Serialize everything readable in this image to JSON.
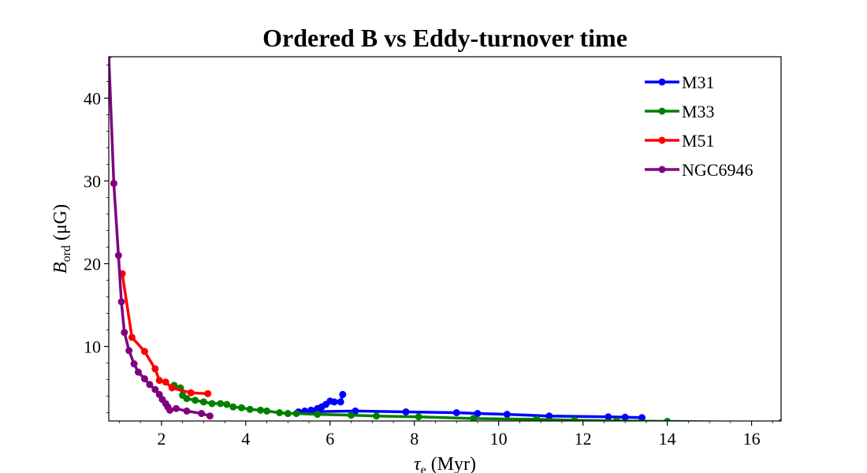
{
  "chart_data": {
    "type": "line",
    "title": "Ordered B vs Eddy-turnover time",
    "xlabel": "τe (Myr)",
    "ylabel": "Bord (μG)",
    "xlim": [
      0.75,
      16.7
    ],
    "ylim": [
      1.0,
      45.0
    ],
    "xticks": [
      2,
      4,
      6,
      8,
      10,
      12,
      14,
      16
    ],
    "yticks": [
      10,
      20,
      30,
      40
    ],
    "grid": false,
    "legend_position": "top-right",
    "series": [
      {
        "name": "M31",
        "color": "#0000ff",
        "x": [
          6.3,
          6.25,
          6.1,
          6.0,
          5.9,
          5.8,
          5.7,
          5.55,
          5.4,
          5.25,
          6.6,
          7.8,
          9.0,
          9.5,
          10.2,
          11.2,
          12.6,
          13.0,
          13.4
        ],
        "y": [
          4.2,
          3.3,
          3.3,
          3.4,
          3.0,
          2.7,
          2.5,
          2.3,
          2.2,
          2.1,
          2.2,
          2.1,
          2.0,
          1.9,
          1.8,
          1.6,
          1.5,
          1.45,
          1.4
        ]
      },
      {
        "name": "M33",
        "color": "#008000",
        "x": [
          2.3,
          2.45,
          2.5,
          2.6,
          2.8,
          3.0,
          3.2,
          3.4,
          3.55,
          3.7,
          3.9,
          4.1,
          4.35,
          4.5,
          4.8,
          5.0,
          5.2,
          5.7,
          6.5,
          7.1,
          8.1,
          9.4,
          10.9,
          11.8,
          12.8,
          14.0,
          16.7
        ],
        "y": [
          5.3,
          5.0,
          4.1,
          3.7,
          3.5,
          3.3,
          3.1,
          3.1,
          3.0,
          2.7,
          2.6,
          2.4,
          2.3,
          2.2,
          2.0,
          1.9,
          1.9,
          1.8,
          1.7,
          1.6,
          1.5,
          1.3,
          1.2,
          1.1,
          1.0,
          0.95,
          0.8
        ]
      },
      {
        "name": "M51",
        "color": "#ff0000",
        "x": [
          1.07,
          1.3,
          1.6,
          1.85,
          1.95,
          2.1,
          2.25,
          2.7,
          3.1
        ],
        "y": [
          18.8,
          11.1,
          9.4,
          7.3,
          5.9,
          5.7,
          5.0,
          4.4,
          4.3
        ]
      },
      {
        "name": "NGC6946",
        "color": "#800080",
        "x": [
          0.75,
          0.87,
          0.98,
          1.05,
          1.12,
          1.23,
          1.35,
          1.45,
          1.6,
          1.72,
          1.85,
          1.95,
          2.02,
          2.1,
          2.15,
          2.2,
          2.35,
          2.6,
          2.95,
          3.15
        ],
        "y": [
          45.2,
          29.7,
          21.0,
          15.4,
          11.7,
          9.5,
          7.9,
          6.9,
          6.1,
          5.4,
          4.8,
          4.2,
          3.6,
          3.1,
          2.7,
          2.3,
          2.5,
          2.2,
          1.9,
          1.6
        ]
      }
    ]
  }
}
